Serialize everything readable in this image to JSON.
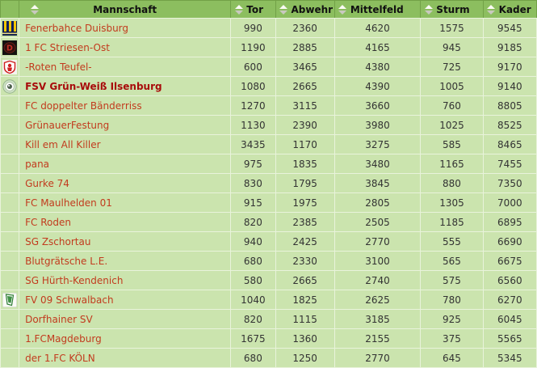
{
  "header": {
    "columns": [
      {
        "key": "logo",
        "label": ""
      },
      {
        "key": "mannschaft",
        "label": "Mannschaft"
      },
      {
        "key": "tor",
        "label": "Tor"
      },
      {
        "key": "abwehr",
        "label": "Abwehr"
      },
      {
        "key": "mittelfeld",
        "label": "Mittelfeld"
      },
      {
        "key": "sturm",
        "label": "Sturm"
      },
      {
        "key": "kader",
        "label": "Kader"
      }
    ]
  },
  "icons": {
    "sort": "sort-up-down-icon"
  },
  "colors": {
    "header_bg": "#8cbe5f",
    "header_border": "#72a147",
    "row_bg": "#cbe4ae",
    "row_separator": "#e9f3db",
    "team_link": "#c23b1e",
    "own_team": "#a80b0b",
    "value_text": "#333333"
  },
  "teams": [
    {
      "name": "Fenerbahce Duisburg",
      "logo": "fenerbahce-duisburg",
      "highlighted": false,
      "tor": 990,
      "abwehr": 2360,
      "mittelfeld": 4620,
      "sturm": 1575,
      "kader": 9545
    },
    {
      "name": "1 FC Striesen-Ost",
      "logo": "striesen-ost",
      "highlighted": false,
      "tor": 1190,
      "abwehr": 2885,
      "mittelfeld": 4165,
      "sturm": 945,
      "kader": 9185
    },
    {
      "name": "-Roten Teufel-",
      "logo": "roten-teufel",
      "highlighted": false,
      "tor": 600,
      "abwehr": 3465,
      "mittelfeld": 4380,
      "sturm": 725,
      "kader": 9170
    },
    {
      "name": "FSV Grün-Weiß Ilsenburg",
      "logo": "gruen-weiss-ilsenburg",
      "highlighted": true,
      "tor": 1080,
      "abwehr": 2665,
      "mittelfeld": 4390,
      "sturm": 1005,
      "kader": 9140
    },
    {
      "name": "FC doppelter Bänderriss",
      "logo": null,
      "highlighted": false,
      "tor": 1270,
      "abwehr": 3115,
      "mittelfeld": 3660,
      "sturm": 760,
      "kader": 8805
    },
    {
      "name": "GrünauerFestung",
      "logo": null,
      "highlighted": false,
      "tor": 1130,
      "abwehr": 2390,
      "mittelfeld": 3980,
      "sturm": 1025,
      "kader": 8525
    },
    {
      "name": "Kill em All Killer",
      "logo": null,
      "highlighted": false,
      "tor": 3435,
      "abwehr": 1170,
      "mittelfeld": 3275,
      "sturm": 585,
      "kader": 8465
    },
    {
      "name": "pana",
      "logo": null,
      "highlighted": false,
      "tor": 975,
      "abwehr": 1835,
      "mittelfeld": 3480,
      "sturm": 1165,
      "kader": 7455
    },
    {
      "name": "Gurke 74",
      "logo": null,
      "highlighted": false,
      "tor": 830,
      "abwehr": 1795,
      "mittelfeld": 3845,
      "sturm": 880,
      "kader": 7350
    },
    {
      "name": "FC Maulhelden 01",
      "logo": null,
      "highlighted": false,
      "tor": 915,
      "abwehr": 1975,
      "mittelfeld": 2805,
      "sturm": 1305,
      "kader": 7000
    },
    {
      "name": "FC Roden",
      "logo": null,
      "highlighted": false,
      "tor": 820,
      "abwehr": 2385,
      "mittelfeld": 2505,
      "sturm": 1185,
      "kader": 6895
    },
    {
      "name": "SG Zschortau",
      "logo": null,
      "highlighted": false,
      "tor": 940,
      "abwehr": 2425,
      "mittelfeld": 2770,
      "sturm": 555,
      "kader": 6690
    },
    {
      "name": "Blutgrätsche L.E.",
      "logo": null,
      "highlighted": false,
      "tor": 680,
      "abwehr": 2330,
      "mittelfeld": 3100,
      "sturm": 565,
      "kader": 6675
    },
    {
      "name": "SG Hürth-Kendenich",
      "logo": null,
      "highlighted": false,
      "tor": 580,
      "abwehr": 2665,
      "mittelfeld": 2740,
      "sturm": 575,
      "kader": 6560
    },
    {
      "name": "FV 09 Schwalbach",
      "logo": "fv-09-schwalbach",
      "highlighted": false,
      "tor": 1040,
      "abwehr": 1825,
      "mittelfeld": 2625,
      "sturm": 780,
      "kader": 6270
    },
    {
      "name": "Dorfhainer SV",
      "logo": null,
      "highlighted": false,
      "tor": 820,
      "abwehr": 1115,
      "mittelfeld": 3185,
      "sturm": 925,
      "kader": 6045
    },
    {
      "name": "1.FCMagdeburg",
      "logo": null,
      "highlighted": false,
      "tor": 1675,
      "abwehr": 1360,
      "mittelfeld": 2155,
      "sturm": 375,
      "kader": 5565
    },
    {
      "name": "der 1.FC KÖLN",
      "logo": null,
      "highlighted": false,
      "tor": 680,
      "abwehr": 1250,
      "mittelfeld": 2770,
      "sturm": 645,
      "kader": 5345
    }
  ]
}
